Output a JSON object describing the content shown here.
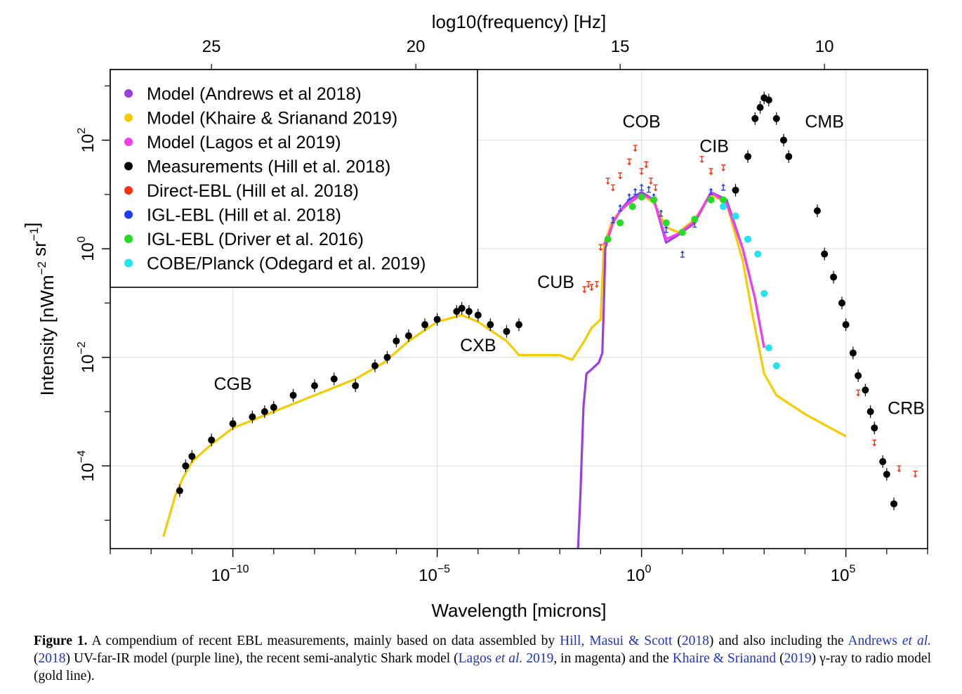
{
  "chart_data": {
    "type": "scatter",
    "xlabel": "Wavelength [microns]",
    "ylabel": "Intensity [nWm^-2 sr^-1]",
    "top_axis_label": "log10(frequency) [Hz]",
    "x_scale": "log",
    "y_scale": "log",
    "xlim": [
      1e-13,
      10000000.0
    ],
    "ylim": [
      3e-06,
      2000
    ],
    "x_ticks": [
      {
        "value": 1e-10,
        "base": "10",
        "exp": "−10"
      },
      {
        "value": 1e-05,
        "base": "10",
        "exp": "−5"
      },
      {
        "value": 1,
        "base": "10",
        "exp": "0"
      },
      {
        "value": 100000.0,
        "base": "10",
        "exp": "5"
      }
    ],
    "y_ticks": [
      {
        "value": 0.0001,
        "base": "10",
        "exp": "−4"
      },
      {
        "value": 0.01,
        "base": "10",
        "exp": "−2"
      },
      {
        "value": 1,
        "base": "10",
        "exp": "0"
      },
      {
        "value": 100,
        "base": "10",
        "exp": "2"
      }
    ],
    "top_ticks": [
      {
        "label": "25",
        "value": 25
      },
      {
        "label": "20",
        "value": 20
      },
      {
        "label": "15",
        "value": 15
      },
      {
        "label": "10",
        "value": 10
      }
    ],
    "grid": true,
    "legend_position": "top-left",
    "legend": [
      {
        "label": "Model (Andrews et al 2018)",
        "color": "#9b3ee0"
      },
      {
        "label": "Model (Khaire & Srianand 2019)",
        "color": "#f5cc00"
      },
      {
        "label": "Model (Lagos et al 2019)",
        "color": "#f03ef0"
      },
      {
        "label": "Measurements (Hill et al. 2018)",
        "color": "#000000"
      },
      {
        "label": "Direct-EBL (Hill et al. 2018)",
        "color": "#ff3010"
      },
      {
        "label": "IGL-EBL (Hill et al. 2018)",
        "color": "#1e3cff"
      },
      {
        "label": "IGL-EBL (Driver et al. 2016)",
        "color": "#22dd22"
      },
      {
        "label": "COBE/Planck (Odegard et al. 2019)",
        "color": "#22e4f0"
      }
    ],
    "annotations": [
      {
        "text": "CGB",
        "x": 1e-10,
        "y": 0.0025
      },
      {
        "text": "CXB",
        "x": 0.0001,
        "y": 0.013
      },
      {
        "text": "CUB",
        "x": 0.008,
        "y": 0.19
      },
      {
        "text": "COB",
        "x": 1.0,
        "y": 170
      },
      {
        "text": "CIB",
        "x": 60,
        "y": 60
      },
      {
        "text": "CMB",
        "x": 30000.0,
        "y": 170
      },
      {
        "text": "CRB",
        "x": 3000000.0,
        "y": 0.0009
      }
    ],
    "series": [
      {
        "name": "Model (Khaire & Srianand 2019)",
        "kind": "line",
        "color": "#f5cc00",
        "x": [
          2e-12,
          4e-12,
          6e-12,
          1e-11,
          3e-11,
          1e-10,
          1e-09,
          1e-08,
          1e-07,
          5e-07,
          2e-06,
          1e-05,
          4e-05,
          0.0001,
          0.0005,
          0.001,
          0.004,
          0.01,
          0.02,
          0.04,
          0.06,
          0.1,
          0.12,
          0.2,
          0.4,
          1,
          2,
          4,
          8,
          20,
          50,
          120,
          300,
          500,
          1000,
          2000,
          10000.0,
          100000.0
        ],
        "y": [
          5e-06,
          3e-05,
          6e-05,
          0.00012,
          0.00025,
          0.0005,
          0.001,
          0.002,
          0.004,
          0.008,
          0.02,
          0.045,
          0.06,
          0.045,
          0.02,
          0.011,
          0.011,
          0.011,
          0.009,
          0.02,
          0.035,
          0.05,
          1.2,
          3.5,
          6,
          10,
          7,
          2.5,
          2,
          3.5,
          10,
          7,
          0.6,
          0.07,
          0.005,
          0.002,
          0.0009,
          0.00035
        ]
      },
      {
        "name": "Model (Andrews et al 2018)",
        "kind": "line",
        "color": "#9b3ee0",
        "x": [
          0.028,
          0.032,
          0.038,
          0.045,
          0.06,
          0.09,
          0.11,
          0.12,
          0.13,
          0.15,
          0.2,
          0.3,
          0.5,
          1,
          2,
          4,
          8,
          20,
          50,
          120,
          300,
          600,
          1000
        ],
        "y": [
          3e-06,
          3e-05,
          0.0012,
          0.005,
          0.006,
          0.008,
          0.012,
          0.1,
          1,
          1.5,
          3,
          5,
          8,
          11,
          8,
          1.3,
          1.8,
          3,
          11,
          8,
          1,
          0.12,
          0.015
        ]
      },
      {
        "name": "Model (Lagos et al 2019)",
        "kind": "line",
        "color": "#f03ef0",
        "x": [
          0.12,
          0.15,
          0.2,
          0.3,
          0.5,
          1,
          2,
          4,
          8,
          20,
          50,
          120,
          300,
          600,
          1000
        ],
        "y": [
          1.2,
          1.6,
          3,
          5,
          7,
          10,
          8,
          1.5,
          1.9,
          3.2,
          11,
          7,
          1,
          0.12,
          0.015
        ]
      },
      {
        "name": "Measurements (Hill et al. 2018)",
        "kind": "points",
        "color": "#000000",
        "x": [
          5e-12,
          7e-12,
          1e-11,
          3e-11,
          1e-10,
          3e-10,
          6e-10,
          1e-09,
          3e-09,
          1e-08,
          3e-08,
          1e-07,
          3e-07,
          6e-07,
          1e-06,
          2e-06,
          5e-06,
          1e-05,
          3e-05,
          4e-05,
          6e-05,
          0.0001,
          0.0002,
          0.0005,
          0.001,
          200,
          400,
          600,
          800,
          1000,
          1300,
          2000,
          3000,
          4000,
          20000.0,
          30000.0,
          50000.0,
          80000.0,
          100000.0,
          150000.0,
          200000.0,
          300000.0,
          400000.0,
          500000.0,
          800000.0,
          1000000.0,
          1500000.0
        ],
        "y": [
          3.5e-05,
          0.0001,
          0.00015,
          0.0003,
          0.0006,
          0.0008,
          0.001,
          0.0012,
          0.002,
          0.003,
          0.004,
          0.003,
          0.007,
          0.01,
          0.02,
          0.025,
          0.04,
          0.05,
          0.07,
          0.08,
          0.07,
          0.06,
          0.04,
          0.03,
          0.04,
          12,
          50,
          250,
          400,
          600,
          550,
          250,
          100,
          50,
          5,
          0.8,
          0.3,
          0.1,
          0.04,
          0.012,
          0.0046,
          0.0025,
          0.001,
          0.0005,
          0.00012,
          7e-05,
          2e-05
        ]
      },
      {
        "name": "Direct-EBL (Hill et al. 2018)",
        "kind": "upper-limits",
        "color": "#ff3010",
        "x": [
          0.04,
          0.05,
          0.06,
          0.08,
          0.1,
          0.15,
          0.2,
          0.3,
          0.5,
          0.7,
          1,
          1.3,
          1.7,
          2.2,
          30,
          50,
          100,
          200000.0,
          500000.0,
          2000000.0,
          5000000.0
        ],
        "y": [
          0.2,
          0.25,
          0.22,
          0.25,
          1.2,
          20,
          15,
          25,
          45,
          80,
          30,
          40,
          20,
          15,
          50,
          30,
          35,
          0.0025,
          0.0003,
          0.0001,
          8e-05
        ]
      },
      {
        "name": "IGL-EBL (Hill et al. 2018)",
        "kind": "lower-limits",
        "color": "#1e3cff",
        "x": [
          0.2,
          0.3,
          0.5,
          0.7,
          1,
          1.5,
          2,
          3,
          4,
          10,
          20,
          50,
          100
        ],
        "y": [
          3,
          5,
          8,
          10,
          12,
          11,
          8,
          4,
          2,
          0.7,
          2.5,
          10,
          12
        ]
      },
      {
        "name": "IGL-EBL (Driver et al. 2016)",
        "kind": "points",
        "color": "#22dd22",
        "x": [
          0.15,
          0.3,
          0.6,
          1,
          2,
          4,
          10,
          20,
          50,
          100,
          200,
          400
        ],
        "y": [
          1.5,
          3,
          6,
          9,
          8,
          3,
          2,
          3.5,
          8,
          8,
          4,
          1.5
        ]
      },
      {
        "name": "COBE/Planck (Odegard et al. 2019)",
        "kind": "points",
        "color": "#22e4f0",
        "x": [
          100,
          200,
          400,
          700,
          1000,
          1300,
          2000
        ],
        "y": [
          6,
          4,
          1.5,
          0.8,
          0.15,
          0.015,
          0.007
        ]
      }
    ]
  },
  "caption": {
    "label": "Figure 1.",
    "t1": " A compendium of recent EBL measurements, mainly based on data assembled by ",
    "c1": "Hill, Masui & Scott",
    "t2": " (",
    "c2": "2018",
    "t3": ") and also including the ",
    "c3": "Andrews",
    "c3i": "et al.",
    "t4": " (",
    "c4": "2018",
    "t5": ") UV-far-IR model (purple line), the recent semi-analytic Shark model (",
    "c5": "Lagos",
    "c5i": "et al.",
    "c5y": "2019",
    "t6": ", in magenta) and the ",
    "c6": "Khaire & Srianand",
    "t7": "  (",
    "c7": "2019",
    "t8": ") γ-ray to radio model (gold line)."
  }
}
